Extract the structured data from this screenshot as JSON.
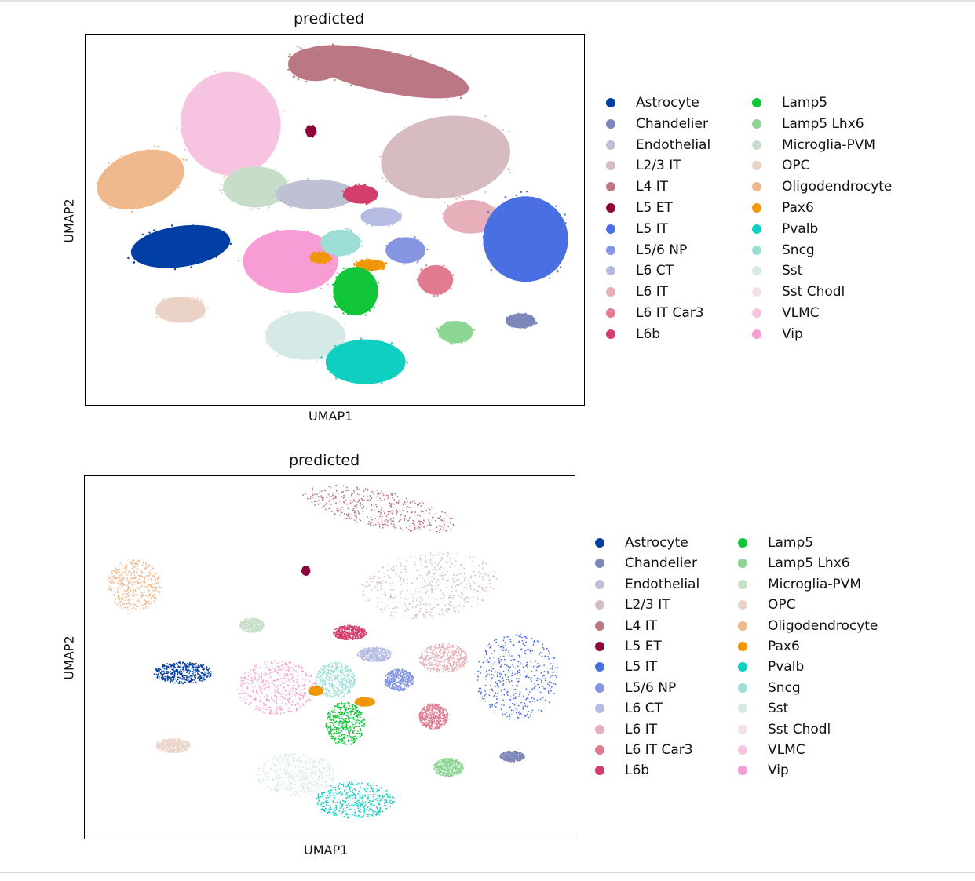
{
  "chart_data": [
    {
      "type": "scatter",
      "title": "predicted",
      "xlabel": "UMAP1",
      "ylabel": "UMAP2",
      "xticks": [],
      "yticks": [],
      "legend_position": "right",
      "legend_columns": 2,
      "categories": [
        {
          "name": "Astrocyte",
          "color": "#023fa5"
        },
        {
          "name": "Chandelier",
          "color": "#7d87b9"
        },
        {
          "name": "Endothelial",
          "color": "#bec1d4"
        },
        {
          "name": "L2/3 IT",
          "color": "#d6bcc0"
        },
        {
          "name": "L4 IT",
          "color": "#bb7784"
        },
        {
          "name": "L5 ET",
          "color": "#8e063b"
        },
        {
          "name": "L5 IT",
          "color": "#4a6fe3"
        },
        {
          "name": "L5/6 NP",
          "color": "#8595e1"
        },
        {
          "name": "L6 CT",
          "color": "#b5bbe3"
        },
        {
          "name": "L6 IT",
          "color": "#e6afb9"
        },
        {
          "name": "L6 IT Car3",
          "color": "#e07b91"
        },
        {
          "name": "L6b",
          "color": "#d33f6a"
        },
        {
          "name": "Lamp5",
          "color": "#11c638"
        },
        {
          "name": "Lamp5 Lhx6",
          "color": "#8dd593"
        },
        {
          "name": "Microglia-PVM",
          "color": "#c6dec7"
        },
        {
          "name": "OPC",
          "color": "#ead3c6"
        },
        {
          "name": "Oligodendrocyte",
          "color": "#f0b98d"
        },
        {
          "name": "Pax6",
          "color": "#ef9708"
        },
        {
          "name": "Pvalb",
          "color": "#0fcfc0"
        },
        {
          "name": "Sncg",
          "color": "#9cded6"
        },
        {
          "name": "Sst",
          "color": "#d5eae7"
        },
        {
          "name": "Sst Chodl",
          "color": "#f3e1eb"
        },
        {
          "name": "VLMC",
          "color": "#f6c4e1"
        },
        {
          "name": "Vip",
          "color": "#f79cd4"
        }
      ]
    },
    {
      "type": "scatter",
      "title": "predicted",
      "xlabel": "UMAP1",
      "ylabel": "UMAP2",
      "xticks": [],
      "yticks": [],
      "legend_position": "right",
      "legend_columns": 2,
      "categories": [
        {
          "name": "Astrocyte",
          "color": "#023fa5"
        },
        {
          "name": "Chandelier",
          "color": "#7d87b9"
        },
        {
          "name": "Endothelial",
          "color": "#bec1d4"
        },
        {
          "name": "L2/3 IT",
          "color": "#d6bcc0"
        },
        {
          "name": "L4 IT",
          "color": "#bb7784"
        },
        {
          "name": "L5 ET",
          "color": "#8e063b"
        },
        {
          "name": "L5 IT",
          "color": "#4a6fe3"
        },
        {
          "name": "L5/6 NP",
          "color": "#8595e1"
        },
        {
          "name": "L6 CT",
          "color": "#b5bbe3"
        },
        {
          "name": "L6 IT",
          "color": "#e6afb9"
        },
        {
          "name": "L6 IT Car3",
          "color": "#e07b91"
        },
        {
          "name": "L6b",
          "color": "#d33f6a"
        },
        {
          "name": "Lamp5",
          "color": "#11c638"
        },
        {
          "name": "Lamp5 Lhx6",
          "color": "#8dd593"
        },
        {
          "name": "Microglia-PVM",
          "color": "#c6dec7"
        },
        {
          "name": "OPC",
          "color": "#ead3c6"
        },
        {
          "name": "Oligodendrocyte",
          "color": "#f0b98d"
        },
        {
          "name": "Pax6",
          "color": "#ef9708"
        },
        {
          "name": "Pvalb",
          "color": "#0fcfc0"
        },
        {
          "name": "Sncg",
          "color": "#9cded6"
        },
        {
          "name": "Sst",
          "color": "#d5eae7"
        },
        {
          "name": "Sst Chodl",
          "color": "#f3e1eb"
        },
        {
          "name": "VLMC",
          "color": "#f6c4e1"
        },
        {
          "name": "Vip",
          "color": "#f79cd4"
        }
      ]
    }
  ]
}
